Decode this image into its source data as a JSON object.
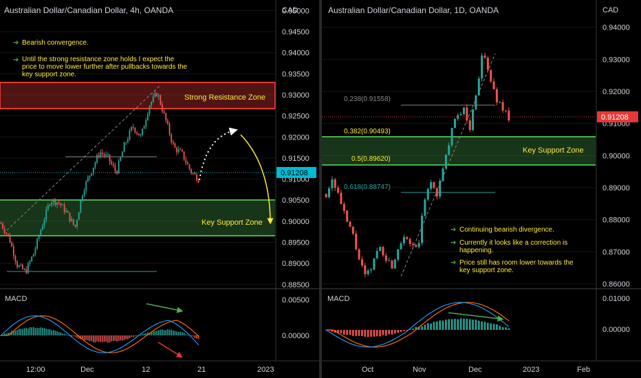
{
  "left": {
    "title": "Australian Dollar/Canadian Dollar, 4h, OANDA",
    "currency": "CAD",
    "price_ticks": [
      "0.95000",
      "0.94500",
      "0.94000",
      "0.93500",
      "0.93000",
      "0.92500",
      "0.92000",
      "0.91500",
      "0.91000",
      "0.90500",
      "0.90000",
      "0.89500",
      "0.89000",
      "0.88500"
    ],
    "price_range": [
      0.884,
      0.9525
    ],
    "last_price": "0.91208",
    "macd_ticks": [
      "0.00500",
      "0.00000"
    ],
    "macd_label": "MACD",
    "time_labels": [
      "12:00",
      "Dec",
      "12",
      "21",
      "2023"
    ],
    "notes": [
      "Bearish convergence.",
      "Until the strong resistance zone holds I expect the price to move lower further after pullbacks towards the key support zone."
    ],
    "resistance_zone": {
      "label": "Strong Resistance Zone",
      "range": [
        0.9276,
        0.9337
      ]
    },
    "support_zone": {
      "label": "Key Support Zone",
      "range": [
        0.8965,
        0.9053
      ]
    }
  },
  "right": {
    "title": "Australian Dollar/Canadian Dollar, 1D, OANDA",
    "currency": "CAD",
    "price_ticks": [
      "0.94000",
      "0.93000",
      "0.92000",
      "0.91000",
      "0.90000",
      "0.89000",
      "0.88000",
      "0.87000",
      "0.86000"
    ],
    "price_range": [
      0.8585,
      0.9485
    ],
    "last_price": "0.91208",
    "macd_ticks": [
      "0.01000",
      "0.00000"
    ],
    "macd_label": "MACD",
    "time_labels": [
      "Oct",
      "Nov",
      "Dec",
      "2023",
      "Feb"
    ],
    "fib_labels": [
      "0.238(0.91558)",
      "0.382(0.90493)",
      "0.5(0.89620)",
      "0.618(0.88747)"
    ],
    "notes": [
      "Continuing bearish divergence.",
      "Currently it looks like a correction is happening.",
      "Price still has room lower towards the key support zone."
    ],
    "support_zone": {
      "label": "Key Support Zone",
      "range": [
        0.8962,
        0.9055
      ]
    }
  },
  "colors": {
    "up": "#26a69a",
    "down": "#ef5350",
    "zone_green": "#4caf50",
    "zone_red": "#e53935",
    "note_yellow": "#ffeb3b",
    "price_badge_left": "#00bcd4",
    "price_badge_right": "#e53935"
  },
  "chart_data": [
    {
      "type": "candlestick",
      "title": "Australian Dollar/Canadian Dollar, 4h, OANDA",
      "ylabel": "CAD",
      "ylim": [
        0.884,
        0.9525
      ],
      "x_ticks": [
        "12:00",
        "Dec",
        "12",
        "21",
        "2023"
      ],
      "approx_path": [
        0.8995,
        0.896,
        0.8895,
        0.888,
        0.8925,
        0.899,
        0.905,
        0.9045,
        0.902,
        0.8985,
        0.9075,
        0.912,
        0.9165,
        0.915,
        0.9115,
        0.918,
        0.9225,
        0.92,
        0.9275,
        0.9305,
        0.924,
        0.9175,
        0.916,
        0.912,
        0.91
      ],
      "last": 0.91208,
      "zones": [
        {
          "name": "Strong Resistance Zone",
          "from": 0.9276,
          "to": 0.9337
        },
        {
          "name": "Key Support Zone",
          "from": 0.8965,
          "to": 0.9053
        }
      ]
    },
    {
      "type": "candlestick",
      "title": "Australian Dollar/Canadian Dollar, 1D, OANDA",
      "ylabel": "CAD",
      "ylim": [
        0.8585,
        0.9485
      ],
      "x_ticks": [
        "Oct",
        "Nov",
        "Dec",
        "2023",
        "Feb"
      ],
      "approx_path": [
        0.888,
        0.893,
        0.887,
        0.88,
        0.876,
        0.868,
        0.862,
        0.865,
        0.872,
        0.869,
        0.865,
        0.871,
        0.876,
        0.872,
        0.87,
        0.885,
        0.892,
        0.888,
        0.896,
        0.906,
        0.912,
        0.915,
        0.908,
        0.92,
        0.932,
        0.925,
        0.918,
        0.915,
        0.912
      ],
      "last": 0.91208,
      "fib_levels": [
        {
          "ratio": "0.238",
          "price": 0.91558
        },
        {
          "ratio": "0.382",
          "price": 0.90493
        },
        {
          "ratio": "0.5",
          "price": 0.8962
        },
        {
          "ratio": "0.618",
          "price": 0.88747
        }
      ],
      "zones": [
        {
          "name": "Key Support Zone",
          "from": 0.8962,
          "to": 0.9055
        }
      ]
    }
  ]
}
